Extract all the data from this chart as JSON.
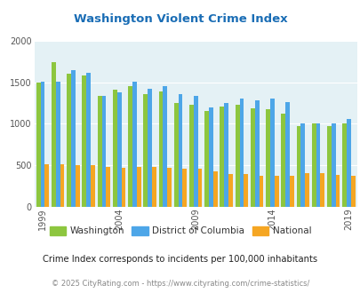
{
  "title": "Washington Violent Crime Index",
  "years": [
    1999,
    2000,
    2001,
    2002,
    2003,
    2004,
    2005,
    2006,
    2007,
    2008,
    2009,
    2010,
    2011,
    2012,
    2013,
    2014,
    2015,
    2016,
    2017,
    2018,
    2019,
    2020
  ],
  "washington": [
    1500,
    1750,
    1610,
    1580,
    1340,
    1410,
    1460,
    1355,
    1390,
    1250,
    1225,
    1155,
    1205,
    1225,
    1185,
    1175,
    1125,
    970,
    1005,
    975,
    1000,
    null
  ],
  "dc": [
    1510,
    1510,
    1645,
    1615,
    1335,
    1385,
    1510,
    1420,
    1455,
    1355,
    1335,
    1195,
    1250,
    1300,
    1285,
    1300,
    1260,
    1005,
    1005,
    1005,
    1060,
    null
  ],
  "national": [
    510,
    510,
    505,
    500,
    480,
    470,
    480,
    480,
    470,
    460,
    455,
    420,
    390,
    390,
    375,
    370,
    375,
    400,
    400,
    385,
    370,
    null
  ],
  "washington_color": "#8dc63f",
  "dc_color": "#4da6e8",
  "national_color": "#f5a623",
  "bg_color": "#e4f1f5",
  "title_color": "#1a6db5",
  "ylabel_max": 2000,
  "subtitle": "Crime Index corresponds to incidents per 100,000 inhabitants",
  "footer": "© 2025 CityRating.com - https://www.cityrating.com/crime-statistics/",
  "legend_labels": [
    "Washington",
    "District of Columbia",
    "National"
  ]
}
